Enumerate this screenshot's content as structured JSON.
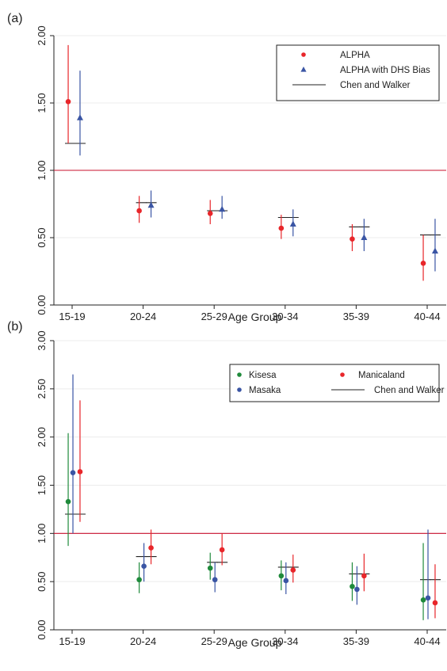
{
  "chart_data": [
    {
      "type": "scatter",
      "panel_label": "(a)",
      "xlabel": "Age Group",
      "ylabel": "",
      "categories": [
        "15-19",
        "20-24",
        "25-29",
        "30-34",
        "35-39",
        "40-44"
      ],
      "ylim": [
        0,
        2.0
      ],
      "yticks": [
        "0.00",
        "0.50",
        "1.00",
        "1.50",
        "2.00"
      ],
      "ytick_values": [
        0,
        0.5,
        1.0,
        1.5,
        2.0
      ],
      "grid": true,
      "legend_position": "top-right",
      "reference_line": 1.0,
      "series": [
        {
          "name": "ALPHA",
          "marker": "circle",
          "color": "#e8262a",
          "offset": -0.15,
          "points": [
            {
              "y": 1.51,
              "lo": 1.2,
              "hi": 1.93
            },
            {
              "y": 0.7,
              "lo": 0.61,
              "hi": 0.81
            },
            {
              "y": 0.68,
              "lo": 0.6,
              "hi": 0.78
            },
            {
              "y": 0.57,
              "lo": 0.49,
              "hi": 0.67
            },
            {
              "y": 0.49,
              "lo": 0.4,
              "hi": 0.6
            },
            {
              "y": 0.31,
              "lo": 0.18,
              "hi": 0.52
            }
          ]
        },
        {
          "name": "ALPHA with DHS Bias",
          "marker": "triangle",
          "color": "#3a55a4",
          "offset": 0.1,
          "points": [
            {
              "y": 1.39,
              "lo": 1.11,
              "hi": 1.74
            },
            {
              "y": 0.74,
              "lo": 0.65,
              "hi": 0.85
            },
            {
              "y": 0.71,
              "lo": 0.64,
              "hi": 0.81
            },
            {
              "y": 0.6,
              "lo": 0.51,
              "hi": 0.71
            },
            {
              "y": 0.5,
              "lo": 0.4,
              "hi": 0.64
            },
            {
              "y": 0.4,
              "lo": 0.25,
              "hi": 0.64
            }
          ]
        }
      ],
      "comparison": {
        "name": "Chen and Walker",
        "color": "#222222",
        "values": [
          1.2,
          0.76,
          0.7,
          0.65,
          0.58,
          0.52
        ]
      }
    },
    {
      "type": "scatter",
      "panel_label": "(b)",
      "xlabel": "Age Group",
      "ylabel": "",
      "categories": [
        "15-19",
        "20-24",
        "25-29",
        "30-34",
        "35-39",
        "40-44"
      ],
      "ylim": [
        0,
        3.0
      ],
      "yticks": [
        "0.00",
        "0.50",
        "1.00",
        "1.50",
        "2.00",
        "2.50",
        "3.00"
      ],
      "ytick_values": [
        0,
        0.5,
        1.0,
        1.5,
        2.0,
        2.5,
        3.0
      ],
      "grid": true,
      "legend_position": "top-right",
      "reference_line": 1.0,
      "series": [
        {
          "name": "Kisesa",
          "marker": "circle",
          "color": "#1f8a3b",
          "offset": -0.15,
          "points": [
            {
              "y": 1.33,
              "lo": 0.87,
              "hi": 2.04
            },
            {
              "y": 0.52,
              "lo": 0.38,
              "hi": 0.7
            },
            {
              "y": 0.64,
              "lo": 0.52,
              "hi": 0.8
            },
            {
              "y": 0.56,
              "lo": 0.41,
              "hi": 0.72
            },
            {
              "y": 0.45,
              "lo": 0.3,
              "hi": 0.7
            },
            {
              "y": 0.31,
              "lo": 0.1,
              "hi": 0.9
            }
          ]
        },
        {
          "name": "Masaka",
          "marker": "circle",
          "color": "#3a55a4",
          "offset": -0.05,
          "points": [
            {
              "y": 1.63,
              "lo": 1.0,
              "hi": 2.65
            },
            {
              "y": 0.66,
              "lo": 0.5,
              "hi": 0.9
            },
            {
              "y": 0.52,
              "lo": 0.39,
              "hi": 0.7
            },
            {
              "y": 0.51,
              "lo": 0.37,
              "hi": 0.7
            },
            {
              "y": 0.42,
              "lo": 0.26,
              "hi": 0.66
            },
            {
              "y": 0.33,
              "lo": 0.11,
              "hi": 1.04
            }
          ]
        },
        {
          "name": "Manicaland",
          "marker": "circle",
          "color": "#e8262a",
          "offset": 0.1,
          "points": [
            {
              "y": 1.64,
              "lo": 1.12,
              "hi": 2.38
            },
            {
              "y": 0.85,
              "lo": 0.68,
              "hi": 1.04
            },
            {
              "y": 0.83,
              "lo": 0.67,
              "hi": 1.0
            },
            {
              "y": 0.62,
              "lo": 0.49,
              "hi": 0.78
            },
            {
              "y": 0.56,
              "lo": 0.4,
              "hi": 0.79
            },
            {
              "y": 0.28,
              "lo": 0.12,
              "hi": 0.68
            }
          ]
        }
      ],
      "comparison": {
        "name": "Chen and Walker",
        "color": "#222222",
        "values": [
          1.2,
          0.76,
          0.7,
          0.65,
          0.58,
          0.52
        ]
      }
    }
  ]
}
